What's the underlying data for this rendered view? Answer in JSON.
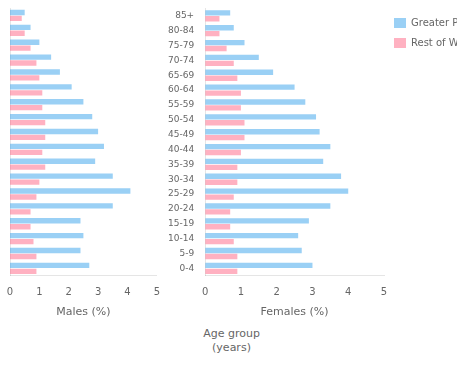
{
  "chart_data": [
    {
      "type": "bar",
      "orientation": "horizontal",
      "xlabel": "Males (%)",
      "categories": [
        "0-4",
        "5-9",
        "10-14",
        "15-19",
        "20-24",
        "25-29",
        "30-34",
        "35-39",
        "40-44",
        "45-49",
        "50-54",
        "55-59",
        "60-64",
        "65-69",
        "70-74",
        "75-79",
        "80-84",
        "85+"
      ],
      "series": [
        {
          "name": "Greater Perth",
          "values": [
            2.7,
            2.4,
            2.5,
            2.4,
            3.5,
            4.1,
            3.5,
            2.9,
            3.2,
            3.0,
            2.8,
            2.5,
            2.1,
            1.7,
            1.4,
            1.0,
            0.7,
            0.5
          ]
        },
        {
          "name": "Rest of WA",
          "values": [
            0.9,
            0.9,
            0.8,
            0.7,
            0.7,
            0.9,
            1.0,
            1.2,
            1.1,
            1.2,
            1.2,
            1.1,
            1.1,
            1.0,
            0.9,
            0.7,
            0.5,
            0.4
          ]
        }
      ],
      "xlim": [
        0,
        5
      ],
      "xticks": [
        0,
        1,
        2,
        3,
        4,
        5
      ],
      "grid": false,
      "tick_labels": "x"
    },
    {
      "type": "bar",
      "orientation": "horizontal",
      "xlabel": "Females (%)",
      "categories": [
        "0-4",
        "5-9",
        "10-14",
        "15-19",
        "20-24",
        "25-29",
        "30-34",
        "35-39",
        "40-44",
        "45-49",
        "50-54",
        "55-59",
        "60-64",
        "65-69",
        "70-74",
        "75-79",
        "80-84",
        "85+"
      ],
      "series": [
        {
          "name": "Greater Perth",
          "values": [
            3.0,
            2.7,
            2.6,
            2.9,
            3.5,
            4.0,
            3.8,
            3.3,
            3.5,
            3.2,
            3.1,
            2.8,
            2.5,
            1.9,
            1.5,
            1.1,
            0.8,
            0.7
          ]
        },
        {
          "name": "Rest of WA",
          "values": [
            0.9,
            0.9,
            0.8,
            0.7,
            0.7,
            0.8,
            0.9,
            0.9,
            1.0,
            1.1,
            1.1,
            1.0,
            1.0,
            0.9,
            0.8,
            0.6,
            0.4,
            0.4
          ]
        }
      ],
      "xlim": [
        0,
        5
      ],
      "xticks": [
        0,
        1,
        2,
        3,
        4,
        5
      ],
      "grid": false,
      "legend": "upper right",
      "annotations": [
        "Age group\n(years)"
      ]
    }
  ]
}
